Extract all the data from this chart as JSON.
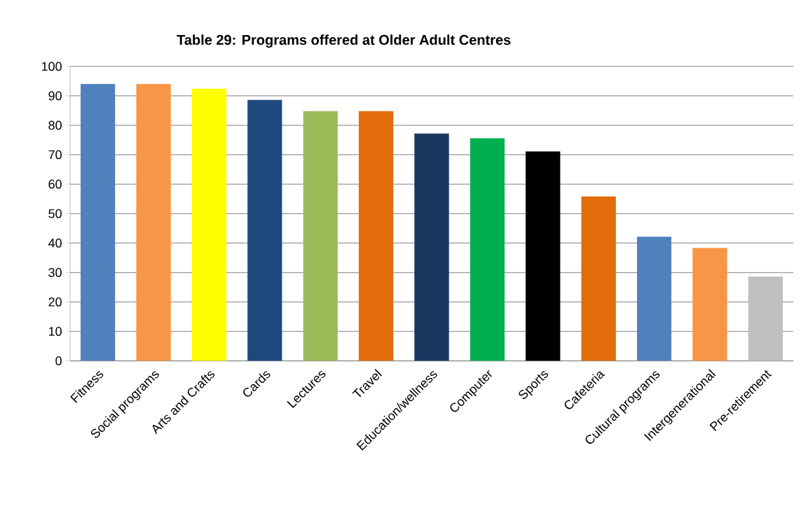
{
  "chart_data": {
    "type": "bar",
    "title": "Table 29: Programs offered at Older Adult Centres",
    "categories": [
      "Fitness",
      "Social programs",
      "Arts and Crafts",
      "Cards",
      "Lectures",
      "Travel",
      "Education/wellness",
      "Computer",
      "Sports",
      "Cafeteria",
      "Cultural programs",
      "Intergenerational",
      "Pre-retirement"
    ],
    "values": [
      94.0,
      94.0,
      92.4,
      88.6,
      84.8,
      84.8,
      77.2,
      75.6,
      71.1,
      55.8,
      42.2,
      38.4,
      28.6
    ],
    "colors": [
      "#4f81bd",
      "#f79646",
      "#ffff00",
      "#1f497d",
      "#9bbb59",
      "#e36c0a",
      "#17375e",
      "#00b050",
      "#000000",
      "#e36c0a",
      "#4f81bd",
      "#f79646",
      "#bfbfbf"
    ],
    "ylim": [
      0,
      100
    ],
    "yticks": [
      0,
      10,
      20,
      30,
      40,
      50,
      60,
      70,
      80,
      90,
      100
    ],
    "grid": "y"
  }
}
